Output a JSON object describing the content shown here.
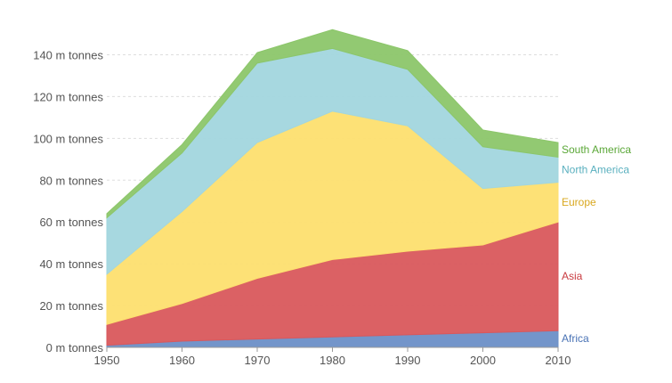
{
  "chart_data": {
    "type": "area",
    "stacked": true,
    "x": [
      1950,
      1960,
      1970,
      1980,
      1990,
      2000,
      2010
    ],
    "y_ticks": [
      0,
      20,
      40,
      60,
      80,
      100,
      120,
      140
    ],
    "y_tick_suffix": " m tonnes",
    "ylim": [
      0,
      150
    ],
    "xlim": [
      1950,
      2010
    ],
    "grid": true,
    "legend": "inline-right",
    "series": [
      {
        "name": "Africa",
        "color": "#6b8fc7",
        "values": [
          1,
          3,
          4,
          5,
          6,
          7,
          8
        ]
      },
      {
        "name": "Asia",
        "color": "#d9585c",
        "values": [
          10,
          18,
          29,
          37,
          40,
          42,
          52
        ]
      },
      {
        "name": "Europe",
        "color": "#fddf6f",
        "values": [
          24,
          44,
          65,
          71,
          60,
          27,
          19
        ]
      },
      {
        "name": "North America",
        "color": "#a2d6de",
        "values": [
          27,
          28,
          38,
          30,
          27,
          20,
          12
        ]
      },
      {
        "name": "South America",
        "color": "#8cc66a",
        "values": [
          2,
          4,
          5,
          9,
          9,
          8,
          7
        ]
      }
    ],
    "label_colors": {
      "Africa": "#4a73b5",
      "Asia": "#c93b40",
      "Europe": "#d9a81f",
      "North America": "#5ab0bf",
      "South America": "#5aa737"
    }
  }
}
